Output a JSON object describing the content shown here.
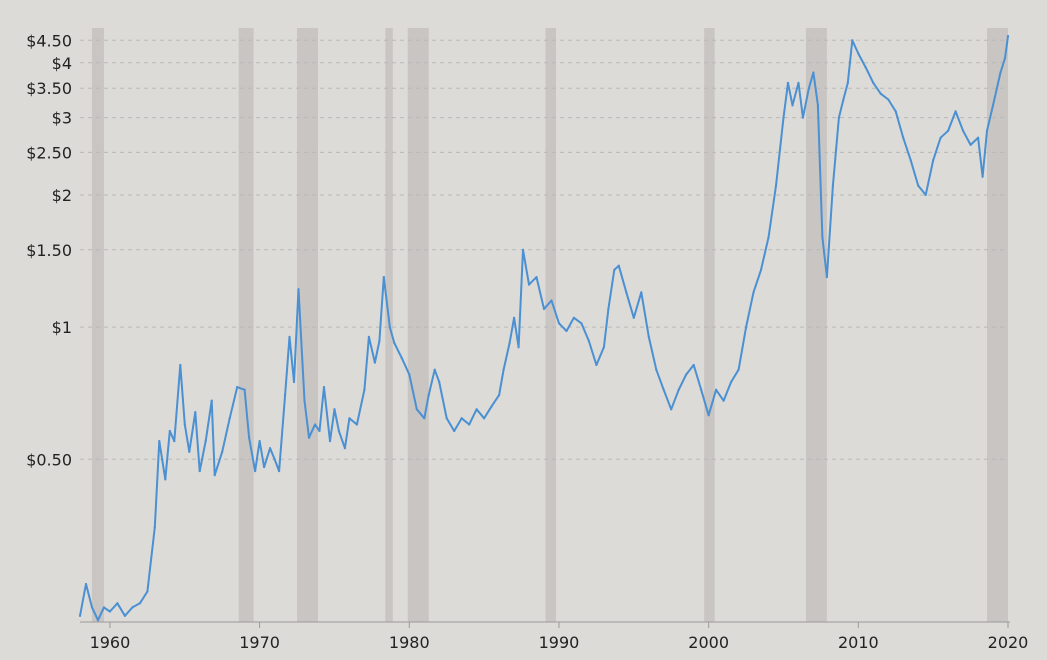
{
  "chart_data": {
    "type": "line",
    "title": "",
    "xlabel": "",
    "ylabel": "",
    "scale": "log",
    "grid": true,
    "legend": "none",
    "colors": {
      "line": "#4a90d2",
      "recession": "#c8c5c2",
      "background": "#dcdbd8",
      "grid": "#b9b9b9"
    },
    "xlim": [
      1958.0,
      2020.0
    ],
    "ylim": [
      0.213,
      4.75
    ],
    "y_ticks": [
      {
        "value": 4.5,
        "label": "$4.50"
      },
      {
        "value": 4.0,
        "label": "$4"
      },
      {
        "value": 3.5,
        "label": "$3.50"
      },
      {
        "value": 3.0,
        "label": "$3"
      },
      {
        "value": 2.5,
        "label": "$2.50"
      },
      {
        "value": 2.0,
        "label": "$2"
      },
      {
        "value": 1.5,
        "label": "$1.50"
      },
      {
        "value": 1.0,
        "label": "$1"
      },
      {
        "value": 0.5,
        "label": "$0.50"
      }
    ],
    "x_ticks": [
      {
        "value": 1960,
        "label": "1960"
      },
      {
        "value": 1970,
        "label": "1970"
      },
      {
        "value": 1980,
        "label": "1980"
      },
      {
        "value": 1990,
        "label": "1990"
      },
      {
        "value": 2000,
        "label": "2000"
      },
      {
        "value": 2010,
        "label": "2010"
      },
      {
        "value": 2020,
        "label": "2020"
      }
    ],
    "recessions": [
      [
        1958.8,
        1959.6
      ],
      [
        1968.6,
        1969.6
      ],
      [
        1972.5,
        1973.9
      ],
      [
        1978.4,
        1978.9
      ],
      [
        1979.9,
        1981.3
      ],
      [
        1989.1,
        1989.8
      ],
      [
        1999.7,
        2000.4
      ],
      [
        2006.5,
        2007.9
      ],
      [
        2018.6,
        2020.0
      ]
    ],
    "series": [
      {
        "values": [
          [
            1958.0,
            0.22
          ],
          [
            1958.4,
            0.26
          ],
          [
            1958.8,
            0.23
          ],
          [
            1959.2,
            0.215
          ],
          [
            1959.6,
            0.23
          ],
          [
            1960.0,
            0.225
          ],
          [
            1960.5,
            0.235
          ],
          [
            1961.0,
            0.22
          ],
          [
            1961.5,
            0.23
          ],
          [
            1962.0,
            0.235
          ],
          [
            1962.5,
            0.25
          ],
          [
            1963.0,
            0.35
          ],
          [
            1963.3,
            0.55
          ],
          [
            1963.7,
            0.45
          ],
          [
            1964.0,
            0.58
          ],
          [
            1964.3,
            0.55
          ],
          [
            1964.7,
            0.82
          ],
          [
            1965.0,
            0.6
          ],
          [
            1965.3,
            0.52
          ],
          [
            1965.7,
            0.64
          ],
          [
            1966.0,
            0.47
          ],
          [
            1966.4,
            0.55
          ],
          [
            1966.8,
            0.68
          ],
          [
            1967.0,
            0.46
          ],
          [
            1967.5,
            0.52
          ],
          [
            1968.0,
            0.62
          ],
          [
            1968.5,
            0.73
          ],
          [
            1969.0,
            0.72
          ],
          [
            1969.3,
            0.56
          ],
          [
            1969.7,
            0.47
          ],
          [
            1970.0,
            0.55
          ],
          [
            1970.3,
            0.48
          ],
          [
            1970.7,
            0.53
          ],
          [
            1971.0,
            0.5
          ],
          [
            1971.3,
            0.47
          ],
          [
            1971.7,
            0.7
          ],
          [
            1972.0,
            0.95
          ],
          [
            1972.3,
            0.75
          ],
          [
            1972.6,
            1.22
          ],
          [
            1973.0,
            0.68
          ],
          [
            1973.3,
            0.56
          ],
          [
            1973.7,
            0.6
          ],
          [
            1974.0,
            0.58
          ],
          [
            1974.3,
            0.73
          ],
          [
            1974.7,
            0.55
          ],
          [
            1975.0,
            0.65
          ],
          [
            1975.3,
            0.58
          ],
          [
            1975.7,
            0.53
          ],
          [
            1976.0,
            0.62
          ],
          [
            1976.5,
            0.6
          ],
          [
            1977.0,
            0.72
          ],
          [
            1977.3,
            0.95
          ],
          [
            1977.7,
            0.83
          ],
          [
            1978.0,
            0.93
          ],
          [
            1978.3,
            1.3
          ],
          [
            1978.7,
            1.0
          ],
          [
            1979.0,
            0.92
          ],
          [
            1979.5,
            0.85
          ],
          [
            1980.0,
            0.78
          ],
          [
            1980.5,
            0.65
          ],
          [
            1981.0,
            0.62
          ],
          [
            1981.3,
            0.7
          ],
          [
            1981.7,
            0.8
          ],
          [
            1982.0,
            0.75
          ],
          [
            1982.5,
            0.62
          ],
          [
            1983.0,
            0.58
          ],
          [
            1983.5,
            0.62
          ],
          [
            1984.0,
            0.6
          ],
          [
            1984.5,
            0.65
          ],
          [
            1985.0,
            0.62
          ],
          [
            1985.5,
            0.66
          ],
          [
            1986.0,
            0.7
          ],
          [
            1986.3,
            0.8
          ],
          [
            1986.7,
            0.92
          ],
          [
            1987.0,
            1.05
          ],
          [
            1987.3,
            0.9
          ],
          [
            1987.6,
            1.5
          ],
          [
            1988.0,
            1.25
          ],
          [
            1988.5,
            1.3
          ],
          [
            1989.0,
            1.1
          ],
          [
            1989.5,
            1.15
          ],
          [
            1990.0,
            1.02
          ],
          [
            1990.5,
            0.98
          ],
          [
            1991.0,
            1.05
          ],
          [
            1991.5,
            1.02
          ],
          [
            1992.0,
            0.93
          ],
          [
            1992.5,
            0.82
          ],
          [
            1993.0,
            0.9
          ],
          [
            1993.3,
            1.1
          ],
          [
            1993.7,
            1.35
          ],
          [
            1994.0,
            1.38
          ],
          [
            1994.5,
            1.2
          ],
          [
            1995.0,
            1.05
          ],
          [
            1995.5,
            1.2
          ],
          [
            1996.0,
            0.95
          ],
          [
            1996.5,
            0.8
          ],
          [
            1997.0,
            0.72
          ],
          [
            1997.5,
            0.65
          ],
          [
            1998.0,
            0.72
          ],
          [
            1998.5,
            0.78
          ],
          [
            1999.0,
            0.82
          ],
          [
            1999.5,
            0.72
          ],
          [
            2000.0,
            0.63
          ],
          [
            2000.5,
            0.72
          ],
          [
            2001.0,
            0.68
          ],
          [
            2001.5,
            0.75
          ],
          [
            2002.0,
            0.8
          ],
          [
            2002.5,
            1.0
          ],
          [
            2003.0,
            1.2
          ],
          [
            2003.5,
            1.35
          ],
          [
            2004.0,
            1.6
          ],
          [
            2004.5,
            2.1
          ],
          [
            2005.0,
            3.0
          ],
          [
            2005.3,
            3.6
          ],
          [
            2005.6,
            3.2
          ],
          [
            2006.0,
            3.6
          ],
          [
            2006.3,
            3.0
          ],
          [
            2006.7,
            3.5
          ],
          [
            2007.0,
            3.8
          ],
          [
            2007.3,
            3.2
          ],
          [
            2007.6,
            1.6
          ],
          [
            2007.9,
            1.3
          ],
          [
            2008.3,
            2.1
          ],
          [
            2008.7,
            3.0
          ],
          [
            2009.0,
            3.3
          ],
          [
            2009.3,
            3.6
          ],
          [
            2009.6,
            4.5
          ],
          [
            2010.0,
            4.2
          ],
          [
            2010.5,
            3.9
          ],
          [
            2011.0,
            3.6
          ],
          [
            2011.5,
            3.4
          ],
          [
            2012.0,
            3.3
          ],
          [
            2012.5,
            3.1
          ],
          [
            2013.0,
            2.7
          ],
          [
            2013.5,
            2.4
          ],
          [
            2014.0,
            2.1
          ],
          [
            2014.5,
            2.0
          ],
          [
            2015.0,
            2.4
          ],
          [
            2015.5,
            2.7
          ],
          [
            2016.0,
            2.8
          ],
          [
            2016.5,
            3.1
          ],
          [
            2017.0,
            2.8
          ],
          [
            2017.5,
            2.6
          ],
          [
            2018.0,
            2.7
          ],
          [
            2018.3,
            2.2
          ],
          [
            2018.6,
            2.8
          ],
          [
            2019.0,
            3.2
          ],
          [
            2019.5,
            3.8
          ],
          [
            2019.8,
            4.1
          ],
          [
            2020.0,
            4.6
          ]
        ]
      }
    ]
  }
}
